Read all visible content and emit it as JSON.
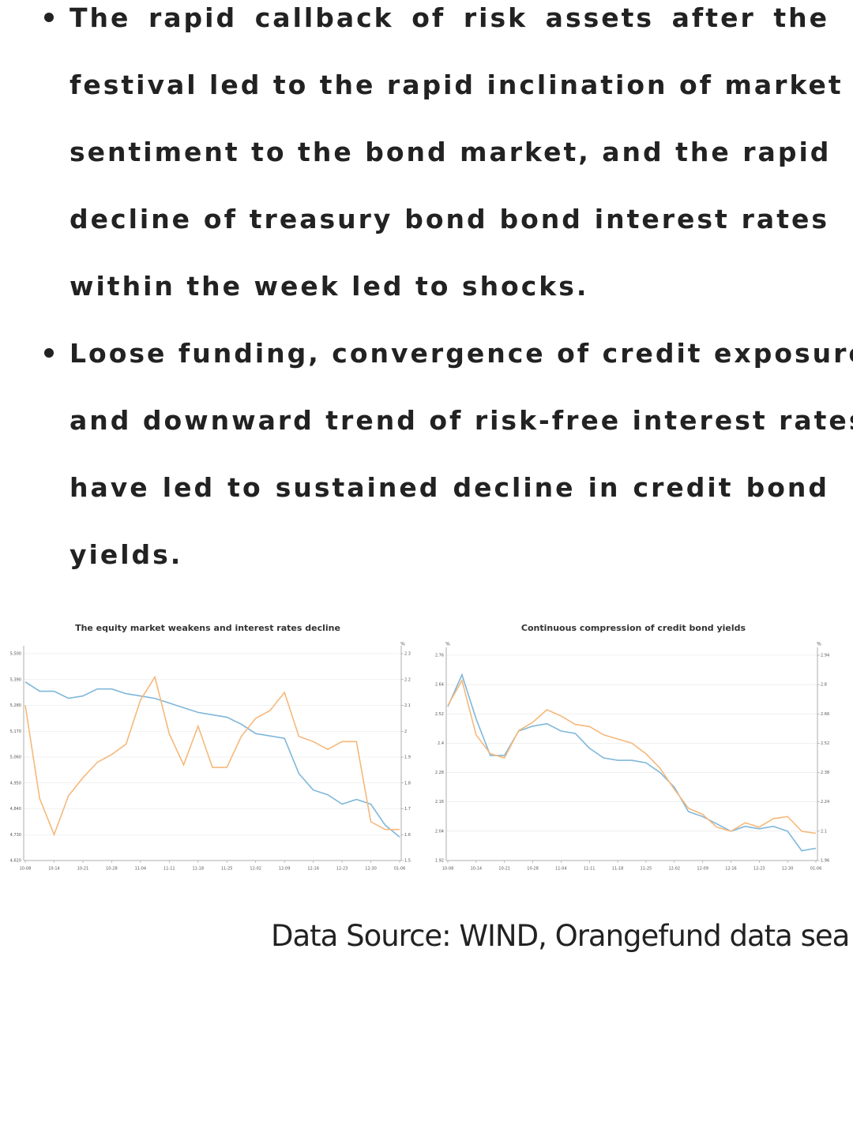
{
  "bullets": [
    {
      "lines": [
        "The rapid callback of risk assets after the",
        "festival led to the rapid inclination of market",
        "sentiment to the bond market, and the rapid",
        "decline of treasury bond bond interest rates",
        "within the week led to shocks."
      ]
    },
    {
      "lines": [
        "Loose funding, convergence of credit exposure,",
        "and downward trend of risk-free interest rates",
        "have led to sustained decline in credit bond",
        "yields."
      ]
    }
  ],
  "chart_data": [
    {
      "type": "line",
      "title": "The equity market weakens and interest rates decline",
      "y2_unit": "%",
      "categories": [
        "10-08",
        null,
        "10-14",
        null,
        "10-21",
        null,
        "10-28",
        null,
        "11-04",
        null,
        "11-11",
        null,
        "11-18",
        null,
        "11-25",
        null,
        "12-02",
        null,
        "12-09",
        null,
        "12-16",
        null,
        "12-23",
        null,
        "12-30",
        null,
        "01-06"
      ],
      "series": [
        {
          "color": "#7fb7da",
          "values": [
            5380,
            5340,
            5340,
            5310,
            5320,
            5350,
            5350,
            5330,
            5320,
            5310,
            5290,
            5270,
            5250,
            5240,
            5230,
            5200,
            5160,
            5150,
            5140,
            4990,
            4920,
            4900,
            4860,
            4880,
            4860,
            4770,
            4720
          ]
        },
        {
          "color": "#f6b87b",
          "axis": "y2",
          "values": [
            2.1,
            1.74,
            1.6,
            1.75,
            1.82,
            1.88,
            1.91,
            1.95,
            2.12,
            2.21,
            1.99,
            1.87,
            2.02,
            1.86,
            1.86,
            1.98,
            2.05,
            2.08,
            2.15,
            1.98,
            1.96,
            1.93,
            1.96,
            1.96,
            1.65,
            1.62,
            1.62
          ]
        }
      ],
      "ylim": [
        4620,
        5500
      ],
      "yticks": [
        {
          "value": 4620,
          "label": "4,620"
        },
        {
          "value": 4730,
          "label": "4,730"
        },
        {
          "value": 4840,
          "label": "4,840"
        },
        {
          "value": 4950,
          "label": "4,950"
        },
        {
          "value": 5060,
          "label": "5,060"
        },
        {
          "value": 5170,
          "label": "5,170"
        },
        {
          "value": 5280,
          "label": "5,280"
        },
        {
          "value": 5390,
          "label": "5,390"
        },
        {
          "value": 5500,
          "label": "5,500"
        }
      ],
      "y2lim": [
        1.5,
        2.3
      ],
      "y2ticks": [
        1.5,
        1.6,
        1.7,
        1.8,
        1.9,
        2,
        2.1,
        2.2,
        2.3
      ],
      "grid": true
    },
    {
      "type": "line",
      "title": "Continuous compression of credit bond yields",
      "y_unit": "%",
      "y2_unit": "%",
      "categories": [
        "10-08",
        null,
        "10-14",
        null,
        "10-21",
        null,
        "10-28",
        null,
        "11-04",
        null,
        "11-11",
        null,
        "11-18",
        null,
        "11-25",
        null,
        "12-02",
        null,
        "12-09",
        null,
        "12-16",
        null,
        "12-23",
        null,
        "12-30",
        null,
        "01-06"
      ],
      "series": [
        {
          "color": "#7fb7da",
          "values": [
            2.55,
            2.68,
            2.5,
            2.35,
            2.35,
            2.45,
            2.47,
            2.48,
            2.45,
            2.44,
            2.38,
            2.34,
            2.33,
            2.33,
            2.32,
            2.28,
            2.22,
            2.12,
            2.1,
            2.07,
            2.04,
            2.06,
            2.05,
            2.06,
            2.04,
            1.96,
            1.97
          ]
        },
        {
          "color": "#f6b87b",
          "axis": "y2",
          "values": [
            2.7,
            2.82,
            2.56,
            2.47,
            2.45,
            2.58,
            2.62,
            2.68,
            2.65,
            2.61,
            2.6,
            2.56,
            2.54,
            2.52,
            2.47,
            2.4,
            2.3,
            2.21,
            2.18,
            2.12,
            2.1,
            2.14,
            2.12,
            2.16,
            2.17,
            2.1,
            2.09
          ]
        }
      ],
      "ylim": [
        1.92,
        2.76
      ],
      "yticks": [
        1.92,
        2.04,
        2.16,
        2.28,
        2.4,
        2.52,
        2.64,
        2.76
      ],
      "y2lim": [
        1.96,
        2.94
      ],
      "y2ticks": [
        1.96,
        2.1,
        2.24,
        2.38,
        2.52,
        2.66,
        2.8,
        2.94
      ],
      "grid": true
    }
  ],
  "source": "Data Source: WIND, Orangefund data sea"
}
